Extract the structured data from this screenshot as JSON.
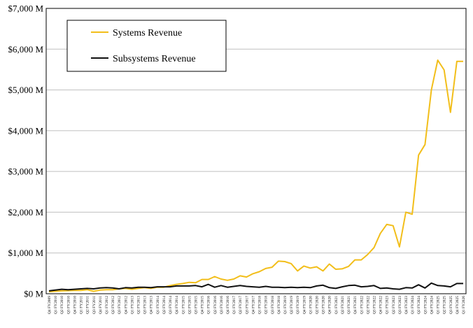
{
  "chart_data": {
    "type": "line",
    "title": "",
    "xlabel": "",
    "ylabel": "",
    "ylim": [
      0,
      7000
    ],
    "y_ticks": [
      0,
      1000,
      2000,
      3000,
      4000,
      5000,
      6000,
      7000
    ],
    "y_tick_labels": [
      "$0 M",
      "$1,000 M",
      "$2,000 M",
      "$3,000 M",
      "$4,000 M",
      "$5,000 M",
      "$6,000 M",
      "$7,000 M"
    ],
    "grid": "horizontal",
    "legend_position": "top-left",
    "categories": [
      "Q4 FY2009",
      "Q1 FY2010",
      "Q2 FY2010",
      "Q3 FY2010",
      "Q4 FY2010",
      "Q1 FY2011",
      "Q2 FY2011",
      "Q3 FY2011",
      "Q4 FY2011",
      "Q1 FY2012",
      "Q2 FY2012",
      "Q3 FY2012",
      "Q4 FY2012",
      "Q1 FY2013",
      "Q2 FY2013",
      "Q3 FY2013",
      "Q4 FY2013",
      "Q1 FY2014",
      "Q2 FY2014",
      "Q3 FY2014",
      "Q4 FY2014",
      "Q1 FY2015",
      "Q2 FY2015",
      "Q3 FY2015",
      "Q4 FY2015",
      "Q1 FY2016",
      "Q2 FY2016",
      "Q3 FY2016",
      "Q4 FY2016",
      "Q1 FY2017",
      "Q2 FY2017",
      "Q3 FY2017",
      "Q4 FY2017",
      "Q1 FY2018",
      "Q2 FY2018",
      "Q3 FY2018",
      "Q4 FY2018",
      "Q1 FY2019",
      "Q2 FY2019",
      "Q3 FY2019",
      "Q4 FY2019",
      "Q1 FY2020",
      "Q2 FY2020",
      "Q3 FY2020",
      "Q4 FY2020",
      "Q1 FY2021",
      "Q2 FY2021",
      "Q3 FY2021",
      "Q4 FY2021",
      "Q1 FY2022",
      "Q2 FY2022",
      "Q3 FY2022",
      "Q4 FY2022",
      "Q1 FY2023",
      "Q2 FY2023",
      "Q3 FY2023",
      "Q4 FY2023",
      "Q1 FY2024",
      "Q2 FY2024",
      "Q3 FY2024",
      "Q4 FY2024",
      "Q1 FY2025",
      "Q2 FY2025",
      "Q3 FY2025",
      "Q4 FY2025",
      "Q1 FY2026"
    ],
    "series": [
      {
        "name": "Systems Revenue",
        "color": "#f2be1a",
        "values": [
          50,
          60,
          70,
          75,
          80,
          80,
          100,
          60,
          90,
          100,
          100,
          120,
          130,
          110,
          130,
          150,
          130,
          160,
          160,
          200,
          230,
          250,
          280,
          270,
          350,
          350,
          420,
          360,
          330,
          360,
          440,
          410,
          490,
          540,
          620,
          650,
          800,
          790,
          740,
          560,
          680,
          630,
          660,
          560,
          730,
          600,
          610,
          670,
          830,
          830,
          960,
          1130,
          1480,
          1700,
          1670,
          1150,
          2000,
          1950,
          3400,
          3660,
          5000,
          5730,
          5490,
          4450,
          5700,
          5700
        ]
      },
      {
        "name": "Subsystems Revenue",
        "color": "#111111",
        "values": [
          70,
          90,
          110,
          100,
          110,
          120,
          130,
          120,
          140,
          150,
          140,
          120,
          150,
          140,
          160,
          160,
          150,
          170,
          170,
          170,
          190,
          190,
          190,
          200,
          170,
          230,
          160,
          200,
          160,
          180,
          200,
          180,
          170,
          160,
          180,
          160,
          160,
          150,
          160,
          150,
          160,
          150,
          190,
          210,
          150,
          130,
          170,
          200,
          210,
          170,
          180,
          200,
          130,
          140,
          120,
          110,
          150,
          140,
          220,
          140,
          260,
          200,
          190,
          170,
          250,
          250
        ]
      }
    ]
  }
}
